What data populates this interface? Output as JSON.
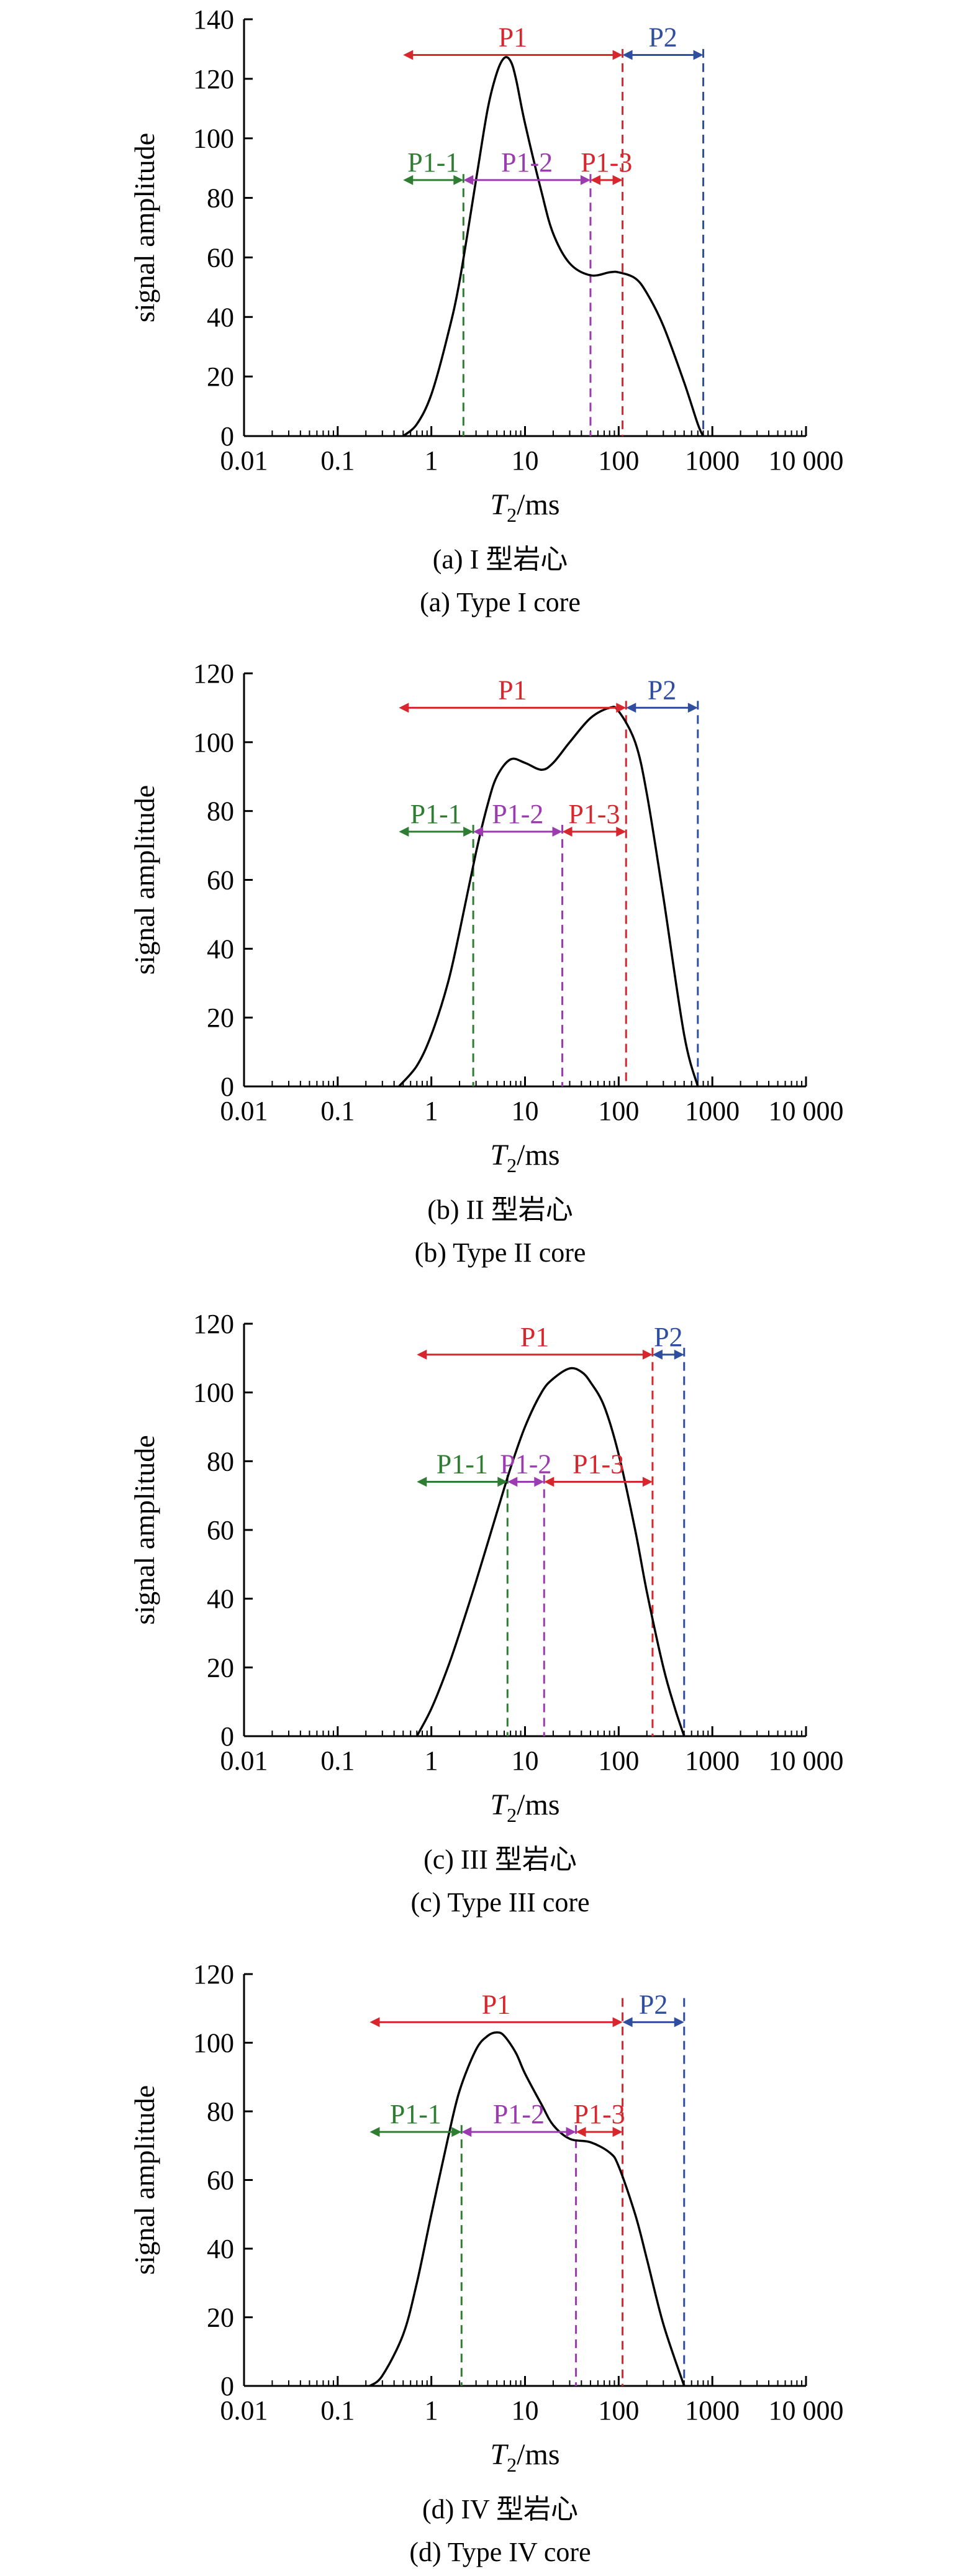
{
  "colors": {
    "axis": "#000000",
    "curve": "#000000",
    "black_boundary": "#000000",
    "red": "#d7262d",
    "blue": "#2f4ea0",
    "green": "#2e7d32",
    "purple": "#9c3bb0"
  },
  "chart_data": [
    {
      "type": "line",
      "ylabel": "signal amplitude",
      "xlabel_main": "T",
      "xlabel_sub": "2",
      "xlabel_unit": "/ms",
      "x_scale": "log",
      "xlim": [
        0.01,
        10000
      ],
      "ylim": [
        0,
        140
      ],
      "x_ticks": [
        0.01,
        0.1,
        1,
        10,
        100,
        1000,
        10000
      ],
      "x_tick_labels": [
        "0.01",
        "0.1",
        "1",
        "10",
        "100",
        "1000",
        "10 000"
      ],
      "y_ticks": [
        0,
        20,
        40,
        60,
        80,
        100,
        120,
        140
      ],
      "y_tick_labels": [
        "0",
        "20",
        "40",
        "60",
        "80",
        "100",
        "120",
        "140"
      ],
      "caption_cn": "(a) I 型岩心",
      "caption_en": "(a) Type I core",
      "curve": {
        "x": [
          0.5,
          0.7,
          1,
          1.5,
          2,
          3,
          4,
          5,
          6,
          7,
          8,
          10,
          15,
          20,
          30,
          50,
          80,
          100,
          150,
          200,
          300,
          500,
          700,
          800
        ],
        "y": [
          0,
          4,
          14,
          34,
          52,
          86,
          110,
          122,
          127,
          126,
          120,
          105,
          82,
          68,
          58,
          54,
          55,
          55,
          53,
          48,
          37,
          18,
          4,
          0
        ]
      },
      "boundaries": [
        {
          "x": 0.5,
          "color": "black",
          "top": 130
        },
        {
          "x": 2.2,
          "color": "green",
          "top": 88
        },
        {
          "x": 50,
          "color": "purple",
          "top": 88
        },
        {
          "x": 110,
          "color": "red",
          "top": 130
        },
        {
          "x": 800,
          "color": "blue",
          "top": 130
        }
      ],
      "spans": [
        {
          "label": "P1",
          "from": 0.5,
          "to": 110,
          "y": 128,
          "color": "red"
        },
        {
          "label": "P2",
          "from": 110,
          "to": 800,
          "y": 128,
          "color": "blue"
        },
        {
          "label": "P1-1",
          "from": 0.5,
          "to": 2.2,
          "y": 86,
          "color": "green"
        },
        {
          "label": "P1-2",
          "from": 2.2,
          "to": 50,
          "y": 86,
          "color": "purple"
        },
        {
          "label": "P1-3",
          "from": 50,
          "to": 110,
          "y": 86,
          "color": "red"
        }
      ]
    },
    {
      "type": "line",
      "ylabel": "signal amplitude",
      "xlabel_main": "T",
      "xlabel_sub": "2",
      "xlabel_unit": "/ms",
      "x_scale": "log",
      "xlim": [
        0.01,
        10000
      ],
      "ylim": [
        0,
        120
      ],
      "x_ticks": [
        0.01,
        0.1,
        1,
        10,
        100,
        1000,
        10000
      ],
      "x_tick_labels": [
        "0.01",
        "0.1",
        "1",
        "10",
        "100",
        "1000",
        "10 000"
      ],
      "y_ticks": [
        0,
        20,
        40,
        60,
        80,
        100,
        120
      ],
      "y_tick_labels": [
        "0",
        "20",
        "40",
        "60",
        "80",
        "100",
        "120"
      ],
      "caption_cn": "(b) II 型岩心",
      "caption_en": "(b) Type II core",
      "curve": {
        "x": [
          0.45,
          0.7,
          1,
          1.5,
          2,
          3,
          4,
          5,
          7,
          10,
          15,
          20,
          30,
          50,
          80,
          100,
          150,
          200,
          300,
          500,
          700
        ],
        "y": [
          0,
          6,
          15,
          30,
          45,
          68,
          82,
          90,
          95,
          94,
          92,
          94,
          100,
          107,
          110,
          109,
          100,
          85,
          55,
          15,
          0
        ]
      },
      "boundaries": [
        {
          "x": 0.45,
          "color": "black",
          "top": 112
        },
        {
          "x": 2.8,
          "color": "green",
          "top": 76
        },
        {
          "x": 25,
          "color": "purple",
          "top": 76
        },
        {
          "x": 120,
          "color": "red",
          "top": 112
        },
        {
          "x": 700,
          "color": "blue",
          "top": 112
        }
      ],
      "spans": [
        {
          "label": "P1",
          "from": 0.45,
          "to": 120,
          "y": 110,
          "color": "red"
        },
        {
          "label": "P2",
          "from": 120,
          "to": 700,
          "y": 110,
          "color": "blue"
        },
        {
          "label": "P1-1",
          "from": 0.45,
          "to": 2.8,
          "y": 74,
          "color": "green"
        },
        {
          "label": "P1-2",
          "from": 2.8,
          "to": 25,
          "y": 74,
          "color": "purple"
        },
        {
          "label": "P1-3",
          "from": 25,
          "to": 120,
          "y": 74,
          "color": "red"
        }
      ]
    },
    {
      "type": "line",
      "ylabel": "signal amplitude",
      "xlabel_main": "T",
      "xlabel_sub": "2",
      "xlabel_unit": "/ms",
      "x_scale": "log",
      "xlim": [
        0.01,
        10000
      ],
      "ylim": [
        0,
        120
      ],
      "x_ticks": [
        0.01,
        0.1,
        1,
        10,
        100,
        1000,
        10000
      ],
      "x_tick_labels": [
        "0.01",
        "0.1",
        "1",
        "10",
        "100",
        "1000",
        "10 000"
      ],
      "y_ticks": [
        0,
        20,
        40,
        60,
        80,
        100,
        120
      ],
      "y_tick_labels": [
        "0",
        "20",
        "40",
        "60",
        "80",
        "100",
        "120"
      ],
      "caption_cn": "(c) III 型岩心",
      "caption_en": "(c) Type III core",
      "curve": {
        "x": [
          0.7,
          1,
          1.5,
          2,
          3,
          5,
          7,
          10,
          15,
          20,
          30,
          40,
          50,
          70,
          100,
          150,
          200,
          300,
          400,
          500
        ],
        "y": [
          0,
          8,
          20,
          30,
          45,
          65,
          78,
          90,
          100,
          104,
          107,
          106,
          103,
          96,
          82,
          60,
          42,
          20,
          8,
          0
        ]
      },
      "boundaries": [
        {
          "x": 0.7,
          "color": "black",
          "top": 113
        },
        {
          "x": 6.5,
          "color": "green",
          "top": 76
        },
        {
          "x": 16,
          "color": "purple",
          "top": 76
        },
        {
          "x": 230,
          "color": "red",
          "top": 113
        },
        {
          "x": 500,
          "color": "blue",
          "top": 113
        }
      ],
      "spans": [
        {
          "label": "P1",
          "from": 0.7,
          "to": 230,
          "y": 111,
          "color": "red"
        },
        {
          "label": "P2",
          "from": 230,
          "to": 500,
          "y": 111,
          "color": "blue"
        },
        {
          "label": "P1-1",
          "from": 0.7,
          "to": 6.5,
          "y": 74,
          "color": "green"
        },
        {
          "label": "P1-2",
          "from": 6.5,
          "to": 16,
          "y": 74,
          "color": "purple"
        },
        {
          "label": "P1-3",
          "from": 16,
          "to": 230,
          "y": 74,
          "color": "red"
        }
      ]
    },
    {
      "type": "line",
      "ylabel": "signal amplitude",
      "xlabel_main": "T",
      "xlabel_sub": "2",
      "xlabel_unit": "/ms",
      "x_scale": "log",
      "xlim": [
        0.01,
        10000
      ],
      "ylim": [
        0,
        120
      ],
      "x_ticks": [
        0.01,
        0.1,
        1,
        10,
        100,
        1000,
        10000
      ],
      "x_tick_labels": [
        "0.01",
        "0.1",
        "1",
        "10",
        "100",
        "1000",
        "10 000"
      ],
      "y_ticks": [
        0,
        20,
        40,
        60,
        80,
        100,
        120
      ],
      "y_tick_labels": [
        "0",
        "20",
        "40",
        "60",
        "80",
        "100",
        "120"
      ],
      "caption_cn": "(d) IV 型岩心",
      "caption_en": "(d) Type IV core",
      "curve": {
        "x": [
          0.22,
          0.3,
          0.5,
          0.7,
          1,
          1.5,
          2,
          3,
          4,
          5,
          6,
          8,
          10,
          15,
          20,
          30,
          50,
          80,
          100,
          150,
          200,
          300,
          500
        ],
        "y": [
          0,
          3,
          15,
          30,
          50,
          72,
          86,
          98,
          102,
          103,
          102,
          97,
          91,
          82,
          76,
          72,
          71,
          68,
          64,
          50,
          37,
          18,
          0
        ]
      },
      "boundaries": [
        {
          "x": 0.22,
          "color": "black",
          "top": 113
        },
        {
          "x": 2.1,
          "color": "green",
          "top": 76
        },
        {
          "x": 35,
          "color": "purple",
          "top": 76
        },
        {
          "x": 110,
          "color": "red",
          "top": 113
        },
        {
          "x": 500,
          "color": "blue",
          "top": 113
        }
      ],
      "spans": [
        {
          "label": "P1",
          "from": 0.22,
          "to": 110,
          "y": 106,
          "color": "red"
        },
        {
          "label": "P2",
          "from": 110,
          "to": 500,
          "y": 106,
          "color": "blue"
        },
        {
          "label": "P1-1",
          "from": 0.22,
          "to": 2.1,
          "y": 74,
          "color": "green"
        },
        {
          "label": "P1-2",
          "from": 2.1,
          "to": 35,
          "y": 74,
          "color": "purple"
        },
        {
          "label": "P1-3",
          "from": 35,
          "to": 110,
          "y": 74,
          "color": "red"
        }
      ]
    }
  ]
}
